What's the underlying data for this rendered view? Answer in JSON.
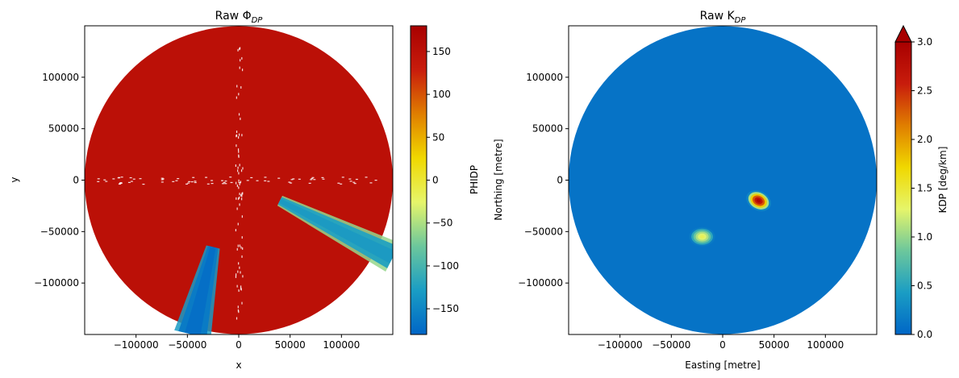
{
  "chart_data": [
    {
      "type": "heatmap",
      "title_main": "Raw Φ",
      "title_sub": "DP",
      "xlabel": "x",
      "ylabel": "y",
      "xlim": [
        -150000,
        150000
      ],
      "ylim": [
        -150000,
        150000
      ],
      "xticks": [
        -100000,
        -50000,
        0,
        50000,
        100000
      ],
      "yticks": [
        -100000,
        -50000,
        0,
        50000,
        100000
      ],
      "xtick_labels": [
        "−100000",
        "−50000",
        "0",
        "50000",
        "100000"
      ],
      "ytick_labels": [
        "−100000",
        "−50000",
        "0",
        "50000",
        "100000"
      ],
      "radar_range": 150000,
      "background_value": 150,
      "features": [
        {
          "kind": "wedge",
          "start": [
            40000,
            -20000
          ],
          "end": [
            150000,
            -75000
          ],
          "start_half_width": 4000,
          "end_half_width": 12000,
          "core_value": -120,
          "edge_value": -60
        },
        {
          "kind": "wedge",
          "start": [
            -25000,
            -65000
          ],
          "end": [
            -45000,
            -150000
          ],
          "start_half_width": 5000,
          "end_half_width": 14000,
          "core_value": -160,
          "edge_value": -130
        }
      ],
      "colorbar": {
        "label": "PHIDP",
        "range": [
          -180,
          180
        ],
        "ticks": [
          -150,
          -100,
          -50,
          0,
          50,
          100,
          150
        ],
        "tick_labels": [
          "−150",
          "−100",
          "−50",
          "0",
          "50",
          "100",
          "150"
        ],
        "extend_max": false
      }
    },
    {
      "type": "heatmap",
      "title_main": "Raw K",
      "title_sub": "DP",
      "xlabel": "Easting [metre]",
      "ylabel": "Northing [metre]",
      "xlim": [
        -150000,
        150000
      ],
      "ylim": [
        -150000,
        150000
      ],
      "xticks": [
        -100000,
        -50000,
        0,
        50000,
        100000
      ],
      "yticks": [
        -100000,
        -50000,
        0,
        50000,
        100000
      ],
      "xtick_labels": [
        "−100000",
        "−50000",
        "0",
        "50000",
        "100000"
      ],
      "ytick_labels": [
        "−100000",
        "−50000",
        "0",
        "50000",
        "100000"
      ],
      "radar_range": 150000,
      "background_value": 0.1,
      "features": [
        {
          "kind": "blob",
          "center": [
            35000,
            -20000
          ],
          "radius": 11000,
          "peak_value": 3.0
        },
        {
          "kind": "blob",
          "center": [
            -20000,
            -55000
          ],
          "radius": 11000,
          "peak_value": 1.4
        }
      ],
      "colorbar": {
        "label": "KDP [deg/km]",
        "range": [
          0,
          3
        ],
        "ticks": [
          0,
          0.5,
          1.0,
          1.5,
          2.0,
          2.5,
          3.0
        ],
        "tick_labels": [
          "0.0",
          "0.5",
          "1.0",
          "1.5",
          "2.0",
          "2.5",
          "3.0"
        ],
        "extend_max": true
      }
    }
  ],
  "colormap_stops": [
    "#0066c6",
    "#1a9dc4",
    "#6cc79c",
    "#e6f56a",
    "#f0d800",
    "#e07e00",
    "#c81c0c",
    "#a80000"
  ],
  "axis_color": "#000000"
}
